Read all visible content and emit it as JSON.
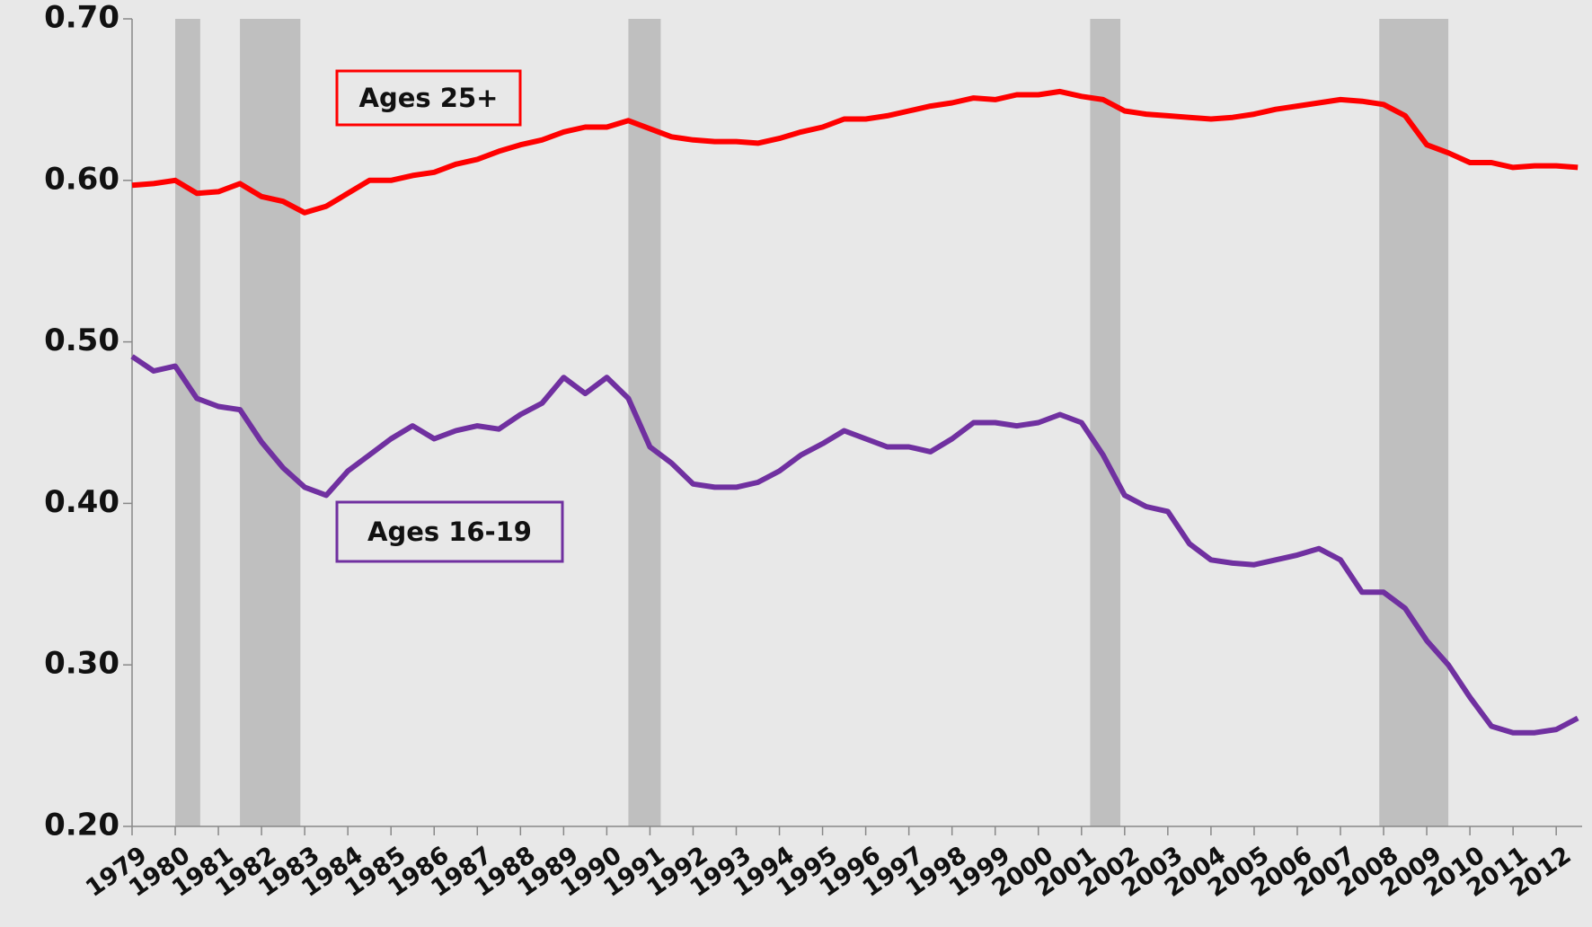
{
  "chart_data": {
    "type": "line",
    "x": [
      1979,
      1979.5,
      1980,
      1980.5,
      1981,
      1981.5,
      1982,
      1982.5,
      1983,
      1983.5,
      1984,
      1984.5,
      1985,
      1985.5,
      1986,
      1986.5,
      1987,
      1987.5,
      1988,
      1988.5,
      1989,
      1989.5,
      1990,
      1990.5,
      1991,
      1991.5,
      1992,
      1992.5,
      1993,
      1993.5,
      1994,
      1994.5,
      1995,
      1995.5,
      1996,
      1996.5,
      1997,
      1997.5,
      1998,
      1998.5,
      1999,
      1999.5,
      2000,
      2000.5,
      2001,
      2001.5,
      2002,
      2002.5,
      2003,
      2003.5,
      2004,
      2004.5,
      2005,
      2005.5,
      2006,
      2006.5,
      2007,
      2007.5,
      2008,
      2008.5,
      2009,
      2009.5,
      2010,
      2010.5,
      2011,
      2011.5,
      2012,
      2012.5
    ],
    "series": [
      {
        "name": "Ages 25+",
        "color": "#ff0000",
        "values": [
          0.597,
          0.598,
          0.6,
          0.592,
          0.593,
          0.598,
          0.59,
          0.587,
          0.58,
          0.584,
          0.592,
          0.6,
          0.6,
          0.603,
          0.605,
          0.61,
          0.613,
          0.618,
          0.622,
          0.625,
          0.63,
          0.633,
          0.633,
          0.637,
          0.632,
          0.627,
          0.625,
          0.624,
          0.624,
          0.623,
          0.626,
          0.63,
          0.633,
          0.638,
          0.638,
          0.64,
          0.643,
          0.646,
          0.648,
          0.651,
          0.65,
          0.653,
          0.653,
          0.655,
          0.652,
          0.65,
          0.643,
          0.641,
          0.64,
          0.639,
          0.638,
          0.639,
          0.641,
          0.644,
          0.646,
          0.648,
          0.65,
          0.649,
          0.647,
          0.64,
          0.622,
          0.617,
          0.611,
          0.611,
          0.608,
          0.609,
          0.609,
          0.608
        ]
      },
      {
        "name": "Ages 16-19",
        "color": "#7030a0",
        "values": [
          0.491,
          0.482,
          0.485,
          0.465,
          0.46,
          0.458,
          0.438,
          0.422,
          0.41,
          0.405,
          0.42,
          0.43,
          0.44,
          0.448,
          0.44,
          0.445,
          0.448,
          0.446,
          0.455,
          0.462,
          0.478,
          0.468,
          0.478,
          0.465,
          0.435,
          0.425,
          0.412,
          0.41,
          0.41,
          0.413,
          0.42,
          0.43,
          0.437,
          0.445,
          0.44,
          0.435,
          0.435,
          0.432,
          0.44,
          0.45,
          0.45,
          0.448,
          0.45,
          0.455,
          0.45,
          0.43,
          0.405,
          0.398,
          0.395,
          0.375,
          0.365,
          0.363,
          0.362,
          0.365,
          0.368,
          0.372,
          0.365,
          0.345,
          0.345,
          0.335,
          0.315,
          0.3,
          0.28,
          0.262,
          0.258,
          0.258,
          0.26,
          0.267
        ]
      }
    ],
    "shaded_ranges": [
      [
        1980.0,
        1980.58
      ],
      [
        1981.5,
        1982.9
      ],
      [
        1990.5,
        1991.25
      ],
      [
        2001.2,
        2001.9
      ],
      [
        2007.9,
        2009.5
      ]
    ],
    "shade_color": "#bfbfbf",
    "xlim": [
      1979,
      2012.6
    ],
    "xticks": [
      1979,
      1980,
      1981,
      1982,
      1983,
      1984,
      1985,
      1986,
      1987,
      1988,
      1989,
      1990,
      1991,
      1992,
      1993,
      1994,
      1995,
      1996,
      1997,
      1998,
      1999,
      2000,
      2001,
      2002,
      2003,
      2004,
      2005,
      2006,
      2007,
      2008,
      2009,
      2010,
      2011,
      2012
    ],
    "ylim": [
      0.2,
      0.7
    ],
    "yticks": [
      {
        "value": 0.2,
        "label": "0.20"
      },
      {
        "value": 0.3,
        "label": "0.30"
      },
      {
        "value": 0.4,
        "label": "0.40"
      },
      {
        "value": 0.5,
        "label": "0.50"
      },
      {
        "value": 0.6,
        "label": "0.60"
      },
      {
        "value": 0.7,
        "label": "0.70"
      }
    ],
    "grid": false
  }
}
